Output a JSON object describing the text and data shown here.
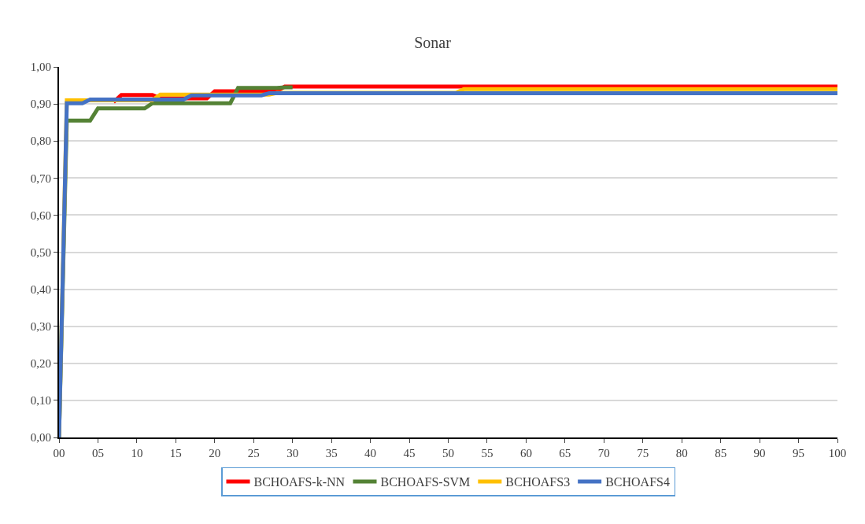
{
  "chart_data": {
    "type": "line",
    "title": "Sonar",
    "xlim": [
      0,
      100
    ],
    "xticks": [
      {
        "value": 0,
        "label": "00"
      },
      {
        "value": 5,
        "label": "05"
      },
      10,
      15,
      20,
      25,
      30,
      35,
      40,
      45,
      50,
      55,
      60,
      65,
      70,
      75,
      80,
      85,
      90,
      95,
      100
    ],
    "ylim": [
      0,
      1
    ],
    "yticks": [
      {
        "value": 0,
        "label": "0,00"
      },
      {
        "value": 0.1,
        "label": "0,10"
      },
      {
        "value": 0.2,
        "label": "0,20"
      },
      {
        "value": 0.3,
        "label": "0,30"
      },
      {
        "value": 0.4,
        "label": "0,40"
      },
      {
        "value": 0.5,
        "label": "0,50"
      },
      {
        "value": 0.6,
        "label": "0,60"
      },
      {
        "value": 0.7,
        "label": "0,70"
      },
      {
        "value": 0.8,
        "label": "0,80"
      },
      {
        "value": 0.9,
        "label": "0,90"
      },
      {
        "value": 1,
        "label": "1,00"
      }
    ],
    "grid": "y",
    "legend": "bottom",
    "marker": "none",
    "line_style": "solid",
    "series": [
      {
        "name": "BCHOAFS-k-NN",
        "color": "#ff0000",
        "x": [
          7,
          8,
          12,
          13,
          19,
          20,
          24,
          25,
          28,
          29,
          100
        ],
        "values": [
          0.905,
          0.924,
          0.924,
          0.915,
          0.915,
          0.934,
          0.934,
          0.935,
          0.935,
          0.947,
          0.947
        ]
      },
      {
        "name": "BCHOAFS-SVM",
        "color": "#548235",
        "x": [
          0,
          1,
          4,
          5,
          11,
          12,
          22,
          23,
          28,
          29,
          30
        ],
        "values": [
          0,
          0.855,
          0.855,
          0.888,
          0.888,
          0.902,
          0.902,
          0.943,
          0.943,
          0.945,
          0.945
        ]
      },
      {
        "name": "BCHOAFS3",
        "color": "#ffc000",
        "x": [
          0,
          1,
          12,
          13,
          16,
          17,
          27,
          28,
          51,
          52,
          100
        ],
        "values": [
          0,
          0.91,
          0.91,
          0.925,
          0.925,
          0.925,
          0.925,
          0.93,
          0.93,
          0.94,
          0.94
        ]
      },
      {
        "name": "BCHOAFS4",
        "color": "#4472c4",
        "x": [
          0,
          1,
          3,
          4,
          16,
          17,
          26,
          27,
          100
        ],
        "values": [
          0,
          0.902,
          0.902,
          0.912,
          0.912,
          0.923,
          0.923,
          0.929,
          0.929
        ]
      }
    ]
  }
}
